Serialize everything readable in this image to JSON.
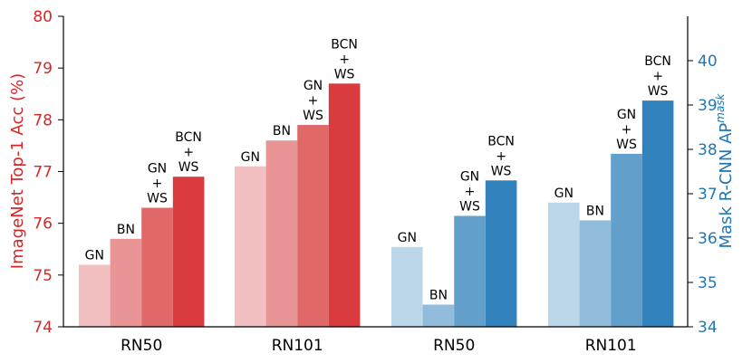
{
  "chart_data": [
    {
      "type": "bar",
      "categories": [
        "RN50",
        "RN101"
      ],
      "ylabel": "ImageNet Top-1 Acc (%)",
      "ylim": [
        74,
        80
      ],
      "yticks": [
        "74",
        "75",
        "76",
        "77",
        "78",
        "79",
        "80"
      ],
      "axis_side": "left",
      "series": [
        {
          "name": "GN",
          "label_lines": [
            "GN"
          ],
          "values": [
            75.2,
            77.1
          ]
        },
        {
          "name": "BN",
          "label_lines": [
            "BN"
          ],
          "values": [
            75.7,
            77.6
          ]
        },
        {
          "name": "GN + WS",
          "label_lines": [
            "GN",
            "+",
            "WS"
          ],
          "values": [
            76.3,
            77.9
          ]
        },
        {
          "name": "BCN + WS",
          "label_lines": [
            "BCN",
            "+",
            "WS"
          ],
          "values": [
            76.9,
            78.7
          ]
        }
      ],
      "colors": [
        "#f2c0c0",
        "#ea9595",
        "#e06868",
        "#d93b3e"
      ]
    },
    {
      "type": "bar",
      "categories": [
        "RN50",
        "RN101"
      ],
      "ylabel": "Mask R-CNN AP",
      "ylabel_superscript": "mask",
      "ylim": [
        34,
        41
      ],
      "yticks": [
        "34",
        "35",
        "36",
        "37",
        "38",
        "39",
        "40"
      ],
      "axis_side": "right",
      "series": [
        {
          "name": "GN",
          "label_lines": [
            "GN"
          ],
          "values": [
            35.8,
            36.8
          ]
        },
        {
          "name": "BN",
          "label_lines": [
            "BN"
          ],
          "values": [
            34.5,
            36.4
          ]
        },
        {
          "name": "GN + WS",
          "label_lines": [
            "GN",
            "+",
            "WS"
          ],
          "values": [
            36.5,
            37.9
          ]
        },
        {
          "name": "BCN + WS",
          "label_lines": [
            "BCN",
            "+",
            "WS"
          ],
          "values": [
            37.3,
            39.1
          ]
        }
      ],
      "colors": [
        "#bdd7ea",
        "#92bcdb",
        "#62a0cb",
        "#3282bd"
      ]
    }
  ],
  "colors": {
    "left_axis": "#d62728",
    "right_axis": "#1f77b4"
  }
}
